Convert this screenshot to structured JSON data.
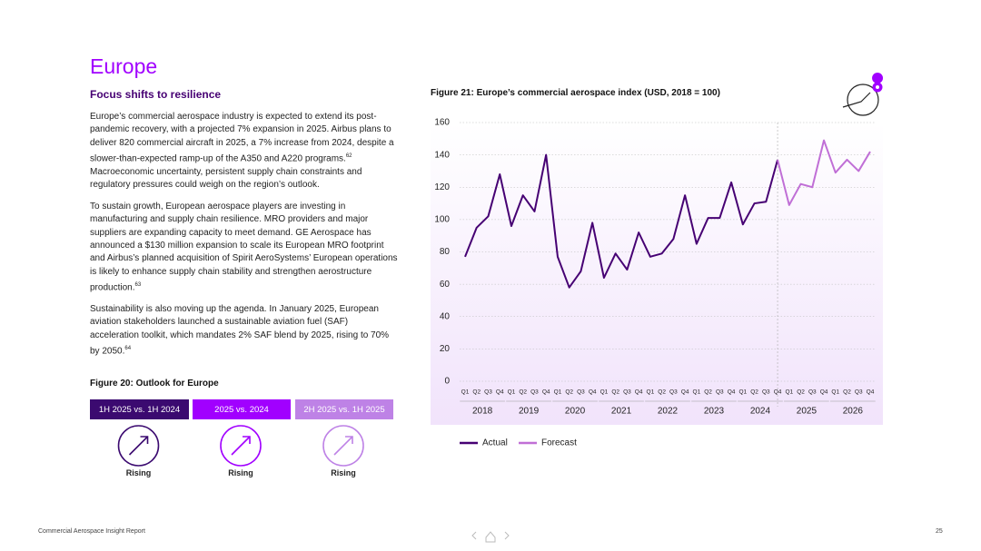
{
  "header": {
    "title": "Europe",
    "subtitle": "Focus shifts to resilience"
  },
  "paragraphs": [
    [
      {
        "text": "Europe’s commercial aerospace industry is expected to extend its post-pandemic recovery, with a projected 7% expansion in 2025. Airbus plans to deliver 820 commercial aircraft in 2025, a 7% increase from 2024, despite a slower-than-expected ramp-up of the A350 and A220 programs."
      },
      {
        "sup": "62"
      },
      {
        "text": " Macroeconomic uncertainty, persistent supply chain constraints and regulatory pressures could weigh on the region’s outlook."
      }
    ],
    [
      {
        "text": "To sustain growth, European aerospace players are investing in manufacturing and supply chain resilience. MRO providers and major suppliers are expanding capacity to meet demand. GE Aerospace has announced a $130 million expansion to scale its European MRO footprint and Airbus’s planned acquisition of Spirit AeroSystems’ European operations is likely to enhance supply chain stability and strengthen aerostructure production."
      },
      {
        "sup": "63"
      }
    ],
    [
      {
        "text": "Sustainability is also moving up the agenda. In January 2025, European aviation stakeholders launched a sustainable aviation fuel (SAF) acceleration toolkit, which mandates 2% SAF blend by 2025, rising to 70% by 2050."
      },
      {
        "sup": "64"
      }
    ]
  ],
  "outlook": {
    "title": "Figure 20: Outlook for Europe",
    "items": [
      {
        "label": "1H 2025 vs. 1H 2024",
        "status": "Rising",
        "color": "#3b0a70"
      },
      {
        "label": "2025 vs. 2024",
        "status": "Rising",
        "color": "#a100ff"
      },
      {
        "label": "2H 2025 vs. 1H 2025",
        "status": "Rising",
        "color": "#be82e6"
      }
    ]
  },
  "chart_data": {
    "type": "line",
    "title": "Figure 21: Europe’s commercial aerospace index (USD, 2018 = 100)",
    "categories": [
      "Q1",
      "Q2",
      "Q3",
      "Q4",
      "Q1",
      "Q2",
      "Q3",
      "Q4",
      "Q1",
      "Q2",
      "Q3",
      "Q4",
      "Q1",
      "Q2",
      "Q3",
      "Q4",
      "Q1",
      "Q2",
      "Q3",
      "Q4",
      "Q1",
      "Q2",
      "Q3",
      "Q4",
      "Q1",
      "Q2",
      "Q3",
      "Q4",
      "Q1",
      "Q2",
      "Q3",
      "Q4",
      "Q1",
      "Q2",
      "Q3",
      "Q4"
    ],
    "year_labels": [
      "2018",
      "2019",
      "2020",
      "2021",
      "2022",
      "2023",
      "2024",
      "2025",
      "2026"
    ],
    "series": [
      {
        "name": "Actual",
        "color": "#460073",
        "values": [
          77,
          95,
          102,
          128,
          96,
          115,
          105,
          140,
          77,
          58,
          68,
          98,
          64,
          79,
          69,
          92,
          77,
          79,
          88,
          115,
          85,
          101,
          101,
          123,
          97,
          110,
          111,
          137,
          null,
          null,
          null,
          null,
          null,
          null,
          null,
          null
        ]
      },
      {
        "name": "Forecast",
        "color": "#c06fd6",
        "values": [
          null,
          null,
          null,
          null,
          null,
          null,
          null,
          null,
          null,
          null,
          null,
          null,
          null,
          null,
          null,
          null,
          null,
          null,
          null,
          null,
          null,
          null,
          null,
          null,
          null,
          null,
          null,
          137,
          109,
          122,
          120,
          149,
          129,
          137,
          130,
          142
        ]
      }
    ],
    "ylim": [
      0,
      160
    ],
    "yticks": [
      0,
      20,
      40,
      60,
      80,
      100,
      120,
      140,
      160
    ],
    "grid": true,
    "legend": "bottom"
  },
  "footer": {
    "report": "Commercial Aerospace Insight Report",
    "page": "25"
  }
}
